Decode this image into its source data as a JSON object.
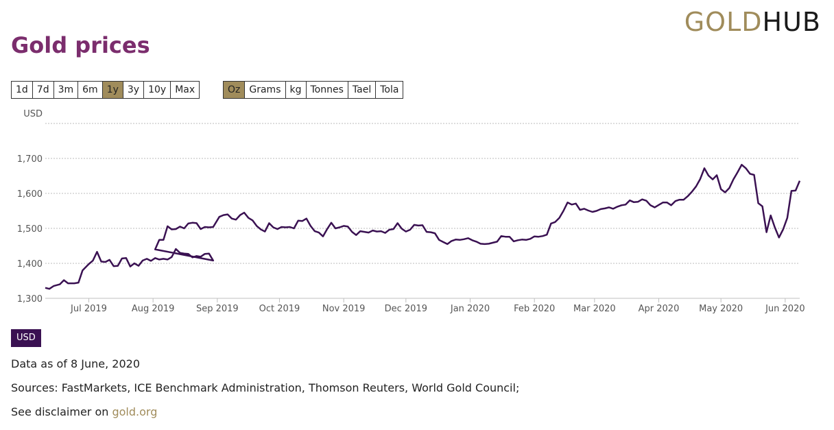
{
  "logo": {
    "part1": "GOLD",
    "part2": "HUB"
  },
  "page_title": "Gold prices",
  "time_ranges": [
    "1d",
    "7d",
    "3m",
    "6m",
    "1y",
    "3y",
    "10y",
    "Max"
  ],
  "active_time_range": "1y",
  "units": [
    "Oz",
    "Grams",
    "kg",
    "Tonnes",
    "Tael",
    "Tola"
  ],
  "active_unit": "Oz",
  "currency_badge": "USD",
  "data_as_of": "Data as of 8 June, 2020",
  "sources": "Sources: FastMarkets, ICE Benchmark Administration, Thomson Reuters, World Gold Council;",
  "disclaimer_prefix": "See disclaimer on ",
  "disclaimer_link": "gold.org",
  "colors": {
    "line": "#3a1152",
    "title": "#7b2d6d",
    "accent": "#a08c5b",
    "badge": "#3a1152"
  },
  "chart_data": {
    "type": "line",
    "ylabel": "USD",
    "ylim": [
      1300,
      1800
    ],
    "y_ticks": [
      1300,
      1400,
      1500,
      1600,
      1700,
      1800
    ],
    "y_tick_labels": [
      "1,300",
      "1,400",
      "1,500",
      "1,600",
      "1,700",
      ""
    ],
    "grid": true,
    "x_ticks": [
      {
        "label": "Jul 2019",
        "date": "2019-07-01"
      },
      {
        "label": "Aug 2019",
        "date": "2019-08-01"
      },
      {
        "label": "Sep 2019",
        "date": "2019-09-01"
      },
      {
        "label": "Oct 2019",
        "date": "2019-10-01"
      },
      {
        "label": "Nov 2019",
        "date": "2019-11-01"
      },
      {
        "label": "Dec 2019",
        "date": "2019-12-01"
      },
      {
        "label": "Jan 2020",
        "date": "2020-01-01"
      },
      {
        "label": "Feb 2020",
        "date": "2020-02-01"
      },
      {
        "label": "Mar 2020",
        "date": "2020-03-01"
      },
      {
        "label": "Apr 2020",
        "date": "2020-04-01"
      },
      {
        "label": "May 2020",
        "date": "2020-05-01"
      },
      {
        "label": "Jun 2020",
        "date": "2020-06-01"
      }
    ],
    "xlim": [
      "2019-06-10",
      "2020-06-08"
    ],
    "series": [
      {
        "color": "#3a1152",
        "points": [
          [
            "2019-06-10",
            1330
          ],
          [
            "2019-06-12",
            1327
          ],
          [
            "2019-06-14",
            1335
          ],
          [
            "2019-06-17",
            1340
          ],
          [
            "2019-06-19",
            1352
          ],
          [
            "2019-06-21",
            1343
          ],
          [
            "2019-06-24",
            1343
          ],
          [
            "2019-06-26",
            1345
          ],
          [
            "2019-06-28",
            1380
          ],
          [
            "2019-07-01",
            1398
          ],
          [
            "2019-07-03",
            1408
          ],
          [
            "2019-07-05",
            1433
          ],
          [
            "2019-07-07",
            1405
          ],
          [
            "2019-07-09",
            1404
          ],
          [
            "2019-07-11",
            1410
          ],
          [
            "2019-07-13",
            1392
          ],
          [
            "2019-07-15",
            1393
          ],
          [
            "2019-07-17",
            1414
          ],
          [
            "2019-07-19",
            1415
          ],
          [
            "2019-07-21",
            1391
          ],
          [
            "2019-07-23",
            1400
          ],
          [
            "2019-07-25",
            1393
          ],
          [
            "2019-07-27",
            1408
          ],
          [
            "2019-07-29",
            1413
          ],
          [
            "2019-07-31",
            1407
          ],
          [
            "2019-08-02",
            1415
          ],
          [
            "2019-08-04",
            1411
          ],
          [
            "2019-08-06",
            1413
          ],
          [
            "2019-08-08",
            1411
          ],
          [
            "2019-08-10",
            1418
          ],
          [
            "2019-08-12",
            1441
          ],
          [
            "2019-08-14",
            1430
          ],
          [
            "2019-08-16",
            1428
          ],
          [
            "2019-08-18",
            1427
          ],
          [
            "2019-08-20",
            1417
          ],
          [
            "2019-08-22",
            1421
          ],
          [
            "2019-08-24",
            1419
          ],
          [
            "2019-08-26",
            1427
          ],
          [
            "2019-08-28",
            1428
          ],
          [
            "2019-08-30",
            1408
          ],
          [
            "2019-08-02",
            1440
          ],
          [
            "2019-08-04",
            1467
          ],
          [
            "2019-08-06",
            1467
          ],
          [
            "2019-08-08",
            1506
          ],
          [
            "2019-08-10",
            1497
          ],
          [
            "2019-08-12",
            1498
          ],
          [
            "2019-08-14",
            1505
          ],
          [
            "2019-08-16",
            1500
          ],
          [
            "2019-08-18",
            1514
          ],
          [
            "2019-08-20",
            1516
          ],
          [
            "2019-08-22",
            1515
          ],
          [
            "2019-08-24",
            1498
          ],
          [
            "2019-08-26",
            1504
          ],
          [
            "2019-08-28",
            1503
          ],
          [
            "2019-08-30",
            1504
          ],
          [
            "2019-09-02",
            1533
          ],
          [
            "2019-09-04",
            1538
          ],
          [
            "2019-09-06",
            1540
          ],
          [
            "2019-09-08",
            1528
          ],
          [
            "2019-09-10",
            1525
          ],
          [
            "2019-09-12",
            1538
          ],
          [
            "2019-09-14",
            1545
          ],
          [
            "2019-09-16",
            1530
          ],
          [
            "2019-09-18",
            1523
          ],
          [
            "2019-09-20",
            1507
          ],
          [
            "2019-09-22",
            1497
          ],
          [
            "2019-09-24",
            1491
          ],
          [
            "2019-09-26",
            1515
          ],
          [
            "2019-09-28",
            1503
          ],
          [
            "2019-09-30",
            1498
          ],
          [
            "2019-10-02",
            1504
          ],
          [
            "2019-10-04",
            1503
          ],
          [
            "2019-10-06",
            1504
          ],
          [
            "2019-10-08",
            1500
          ],
          [
            "2019-10-10",
            1522
          ],
          [
            "2019-10-12",
            1521
          ],
          [
            "2019-10-14",
            1528
          ],
          [
            "2019-10-16",
            1507
          ],
          [
            "2019-10-18",
            1492
          ],
          [
            "2019-10-20",
            1488
          ],
          [
            "2019-10-22",
            1477
          ],
          [
            "2019-10-24",
            1498
          ],
          [
            "2019-10-26",
            1516
          ],
          [
            "2019-10-28",
            1500
          ],
          [
            "2019-10-30",
            1503
          ],
          [
            "2019-11-01",
            1507
          ],
          [
            "2019-11-03",
            1505
          ],
          [
            "2019-11-05",
            1490
          ],
          [
            "2019-11-07",
            1481
          ],
          [
            "2019-11-09",
            1492
          ],
          [
            "2019-11-11",
            1490
          ],
          [
            "2019-11-13",
            1488
          ],
          [
            "2019-11-15",
            1494
          ],
          [
            "2019-11-17",
            1491
          ],
          [
            "2019-11-19",
            1492
          ],
          [
            "2019-11-21",
            1487
          ],
          [
            "2019-11-23",
            1496
          ],
          [
            "2019-11-25",
            1498
          ],
          [
            "2019-11-27",
            1515
          ],
          [
            "2019-11-29",
            1499
          ],
          [
            "2019-12-01",
            1491
          ],
          [
            "2019-12-03",
            1496
          ],
          [
            "2019-12-05",
            1510
          ],
          [
            "2019-12-07",
            1508
          ],
          [
            "2019-12-09",
            1509
          ],
          [
            "2019-12-11",
            1490
          ],
          [
            "2019-12-13",
            1489
          ],
          [
            "2019-12-15",
            1486
          ],
          [
            "2019-12-17",
            1467
          ],
          [
            "2019-12-19",
            1461
          ],
          [
            "2019-12-21",
            1455
          ],
          [
            "2019-12-23",
            1464
          ],
          [
            "2019-12-25",
            1468
          ],
          [
            "2019-12-27",
            1467
          ],
          [
            "2019-12-29",
            1469
          ],
          [
            "2019-12-31",
            1472
          ],
          [
            "2020-01-02",
            1466
          ],
          [
            "2020-01-04",
            1462
          ],
          [
            "2020-01-06",
            1456
          ],
          [
            "2020-01-08",
            1455
          ],
          [
            "2020-01-10",
            1456
          ],
          [
            "2020-01-12",
            1459
          ],
          [
            "2020-01-14",
            1462
          ],
          [
            "2020-01-16",
            1478
          ],
          [
            "2020-01-18",
            1476
          ],
          [
            "2020-01-20",
            1476
          ],
          [
            "2020-01-22",
            1463
          ],
          [
            "2020-01-24",
            1466
          ],
          [
            "2020-01-26",
            1468
          ],
          [
            "2020-01-28",
            1467
          ],
          [
            "2020-01-30",
            1470
          ],
          [
            "2020-02-01",
            1477
          ],
          [
            "2020-02-03",
            1476
          ],
          [
            "2020-02-05",
            1478
          ],
          [
            "2020-02-07",
            1482
          ],
          [
            "2020-02-09",
            1514
          ],
          [
            "2020-02-11",
            1518
          ],
          [
            "2020-02-13",
            1530
          ],
          [
            "2020-02-15",
            1550
          ],
          [
            "2020-02-17",
            1574
          ],
          [
            "2020-02-19",
            1568
          ],
          [
            "2020-02-21",
            1571
          ],
          [
            "2020-02-23",
            1553
          ],
          [
            "2020-02-25",
            1556
          ],
          [
            "2020-02-27",
            1551
          ],
          [
            "2020-02-29",
            1547
          ],
          [
            "2020-03-02",
            1550
          ],
          [
            "2020-03-04",
            1555
          ],
          [
            "2020-03-06",
            1557
          ],
          [
            "2020-03-08",
            1560
          ],
          [
            "2020-03-10",
            1556
          ],
          [
            "2020-03-12",
            1562
          ],
          [
            "2020-03-14",
            1566
          ],
          [
            "2020-03-16",
            1568
          ],
          [
            "2020-03-18",
            1580
          ],
          [
            "2020-03-20",
            1575
          ],
          [
            "2020-03-22",
            1576
          ],
          [
            "2020-03-24",
            1583
          ],
          [
            "2020-03-26",
            1579
          ],
          [
            "2020-03-28",
            1566
          ],
          [
            "2020-03-30",
            1560
          ],
          [
            "2020-04-01",
            1567
          ],
          [
            "2020-04-03",
            1574
          ],
          [
            "2020-04-05",
            1574
          ],
          [
            "2020-04-07",
            1566
          ],
          [
            "2020-04-09",
            1578
          ],
          [
            "2020-04-11",
            1582
          ],
          [
            "2020-04-13",
            1582
          ],
          [
            "2020-04-15",
            1592
          ],
          [
            "2020-04-17",
            1605
          ],
          [
            "2020-04-19",
            1620
          ],
          [
            "2020-04-21",
            1641
          ],
          [
            "2020-04-23",
            1672
          ],
          [
            "2020-04-25",
            1651
          ],
          [
            "2020-04-27",
            1640
          ],
          [
            "2020-04-29",
            1652
          ],
          [
            "2020-05-01",
            1612
          ],
          [
            "2020-05-03",
            1603
          ],
          [
            "2020-05-05",
            1615
          ],
          [
            "2020-05-07",
            1640
          ],
          [
            "2020-05-09",
            1660
          ],
          [
            "2020-05-11",
            1682
          ],
          [
            "2020-05-13",
            1672
          ],
          [
            "2020-05-15",
            1656
          ],
          [
            "2020-05-17",
            1653
          ],
          [
            "2020-05-19",
            1572
          ],
          [
            "2020-05-21",
            1563
          ],
          [
            "2020-05-23",
            1489
          ],
          [
            "2020-05-25",
            1537
          ],
          [
            "2020-05-27",
            1503
          ],
          [
            "2020-05-29",
            1474
          ],
          [
            "2020-05-31",
            1497
          ],
          [
            "2020-06-02",
            1530
          ],
          [
            "2020-06-04",
            1607
          ],
          [
            "2020-06-06",
            1608
          ],
          [
            "2020-06-08",
            1636
          ]
        ]
      }
    ]
  }
}
